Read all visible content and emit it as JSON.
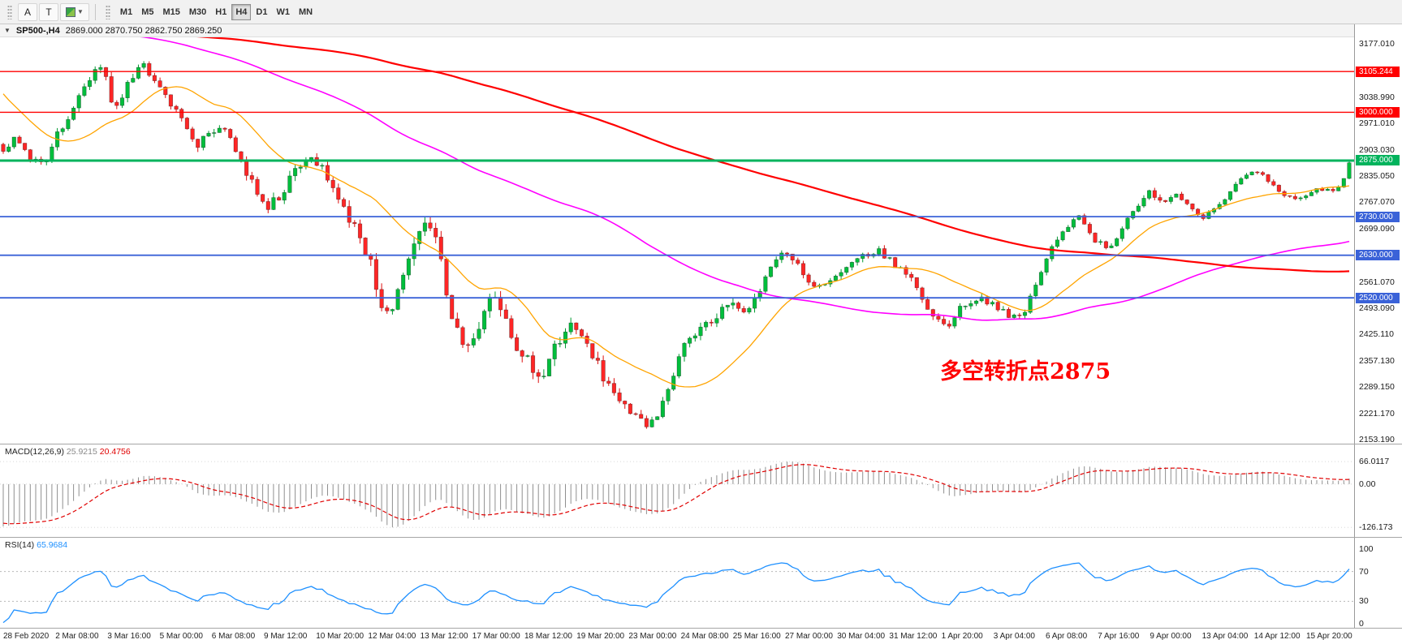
{
  "toolbar": {
    "tools": [
      {
        "name": "text-annotation-tool",
        "label": "A"
      },
      {
        "name": "text-label-tool",
        "label": "T"
      }
    ],
    "timeframes": [
      "M1",
      "M5",
      "M15",
      "M30",
      "H1",
      "H4",
      "D1",
      "W1",
      "MN"
    ],
    "active_timeframe": "H4"
  },
  "chart": {
    "title": "SP500-,H4",
    "ohlc": "2869.000 2870.750 2862.750 2869.250",
    "annotation": {
      "text": "多空转折点2875",
      "color": "#ff0000"
    },
    "levels": [
      {
        "label": "3105.244",
        "price": 3105.244,
        "color": "#ff0000",
        "width": 1.4
      },
      {
        "label": "3000.000",
        "price": 3000.0,
        "color": "#ff0000",
        "width": 1.4
      },
      {
        "label": "2875.000",
        "price": 2875.0,
        "color": "#00b35c",
        "width": 3
      },
      {
        "label": "2730.000",
        "price": 2730.0,
        "color": "#3a62d8",
        "width": 1.8
      },
      {
        "label": "2630.000",
        "price": 2630.0,
        "color": "#3a62d8",
        "width": 1.8
      },
      {
        "label": "2520.000",
        "price": 2520.0,
        "color": "#3a62d8",
        "width": 1.8
      }
    ],
    "axis_labels": [
      "3177.010",
      "3038.990",
      "2971.010",
      "2903.030",
      "2835.050",
      "2767.070",
      "2699.090",
      "2561.070",
      "2493.090",
      "2425.110",
      "2357.130",
      "2289.150",
      "2221.170",
      "2153.190"
    ],
    "axis_range": {
      "top": 3177.01,
      "bottom": 2153.19
    }
  },
  "indicators": {
    "macd": {
      "label": "MACD(12,26,9)",
      "value_main": "25.9215",
      "value_signal": "20.4756",
      "axis": [
        "66.0117",
        "0.00",
        "-126.173"
      ],
      "params": {
        "fast": 12,
        "slow": 26,
        "signal": 9
      },
      "histogram_color": "#8f8f8f",
      "signal_color": "#e00000"
    },
    "rsi": {
      "label": "RSI(14)",
      "value": "65.9684",
      "axis": [
        "100",
        "70",
        "30",
        "0"
      ],
      "levels": [
        70,
        30
      ],
      "period": 14,
      "line_color": "#1e90ff"
    }
  },
  "time_axis": [
    "28 Feb 2020",
    "2 Mar 08:00",
    "3 Mar 16:00",
    "5 Mar 00:00",
    "6 Mar 08:00",
    "9 Mar 12:00",
    "10 Mar 20:00",
    "12 Mar 04:00",
    "13 Mar 12:00",
    "17 Mar 00:00",
    "18 Mar 12:00",
    "19 Mar 20:00",
    "23 Mar 00:00",
    "24 Mar 08:00",
    "25 Mar 16:00",
    "27 Mar 00:00",
    "30 Mar 04:00",
    "31 Mar 12:00",
    "1 Apr 20:00",
    "3 Apr 04:00",
    "6 Apr 08:00",
    "7 Apr 16:00",
    "9 Apr 00:00",
    "13 Apr 04:00",
    "14 Apr 12:00",
    "15 Apr 20:00"
  ],
  "chart_data": {
    "type": "candlestick",
    "symbol": "SP500-",
    "timeframe": "H4",
    "visible_bars": 250,
    "last_close": 2869.25,
    "colors": {
      "up_fill": "#00be3c",
      "up_wick": "#009a30",
      "down_fill": "#ff2626",
      "down_wick": "#dd0e0e",
      "body_border": "rgba(0,0,0,0.45)"
    },
    "moving_averages": [
      {
        "period": 20,
        "color": "#ffa400",
        "width": 1.3
      },
      {
        "period": 100,
        "color": "#ff00ff",
        "width": 1.6
      },
      {
        "period": 200,
        "color": "#ff0000",
        "width": 2.2
      }
    ],
    "price_path": [
      [
        0.0,
        2905,
        18
      ],
      [
        0.01,
        2935,
        18
      ],
      [
        0.02,
        2880,
        18
      ],
      [
        0.03,
        2865,
        18
      ],
      [
        0.04,
        2940,
        20
      ],
      [
        0.055,
        3030,
        22
      ],
      [
        0.068,
        3110,
        24
      ],
      [
        0.074,
        3130,
        24
      ],
      [
        0.082,
        3000,
        26
      ],
      [
        0.092,
        3070,
        24
      ],
      [
        0.103,
        3125,
        22
      ],
      [
        0.112,
        3090,
        20
      ],
      [
        0.119,
        3045,
        20
      ],
      [
        0.132,
        2985,
        22
      ],
      [
        0.145,
        2915,
        24
      ],
      [
        0.155,
        2950,
        24
      ],
      [
        0.165,
        2965,
        22
      ],
      [
        0.175,
        2880,
        26
      ],
      [
        0.188,
        2800,
        30
      ],
      [
        0.197,
        2755,
        30
      ],
      [
        0.205,
        2785,
        28
      ],
      [
        0.218,
        2850,
        28
      ],
      [
        0.228,
        2880,
        26
      ],
      [
        0.238,
        2860,
        28
      ],
      [
        0.25,
        2760,
        32
      ],
      [
        0.262,
        2705,
        34
      ],
      [
        0.272,
        2620,
        38
      ],
      [
        0.28,
        2510,
        40
      ],
      [
        0.288,
        2485,
        40
      ],
      [
        0.298,
        2575,
        38
      ],
      [
        0.308,
        2680,
        36
      ],
      [
        0.315,
        2710,
        34
      ],
      [
        0.323,
        2660,
        36
      ],
      [
        0.332,
        2480,
        42
      ],
      [
        0.342,
        2400,
        40
      ],
      [
        0.352,
        2420,
        38
      ],
      [
        0.362,
        2530,
        36
      ],
      [
        0.37,
        2495,
        36
      ],
      [
        0.38,
        2390,
        38
      ],
      [
        0.391,
        2355,
        38
      ],
      [
        0.4,
        2300,
        38
      ],
      [
        0.41,
        2400,
        38
      ],
      [
        0.42,
        2445,
        36
      ],
      [
        0.43,
        2420,
        34
      ],
      [
        0.44,
        2355,
        34
      ],
      [
        0.45,
        2290,
        32
      ],
      [
        0.462,
        2245,
        30
      ],
      [
        0.472,
        2200,
        28
      ],
      [
        0.48,
        2180,
        28
      ],
      [
        0.488,
        2235,
        28
      ],
      [
        0.498,
        2330,
        30
      ],
      [
        0.509,
        2420,
        28
      ],
      [
        0.52,
        2450,
        26
      ],
      [
        0.53,
        2465,
        26
      ],
      [
        0.54,
        2515,
        26
      ],
      [
        0.548,
        2480,
        26
      ],
      [
        0.558,
        2515,
        24
      ],
      [
        0.57,
        2600,
        24
      ],
      [
        0.58,
        2635,
        24
      ],
      [
        0.59,
        2605,
        24
      ],
      [
        0.6,
        2545,
        24
      ],
      [
        0.612,
        2555,
        22
      ],
      [
        0.626,
        2590,
        22
      ],
      [
        0.638,
        2630,
        20
      ],
      [
        0.65,
        2640,
        20
      ],
      [
        0.665,
        2600,
        20
      ],
      [
        0.678,
        2555,
        20
      ],
      [
        0.69,
        2470,
        20
      ],
      [
        0.702,
        2450,
        20
      ],
      [
        0.714,
        2505,
        20
      ],
      [
        0.726,
        2520,
        18
      ],
      [
        0.738,
        2500,
        18
      ],
      [
        0.748,
        2465,
        18
      ],
      [
        0.758,
        2475,
        18
      ],
      [
        0.768,
        2565,
        18
      ],
      [
        0.78,
        2655,
        18
      ],
      [
        0.79,
        2700,
        18
      ],
      [
        0.8,
        2740,
        18
      ],
      [
        0.81,
        2670,
        18
      ],
      [
        0.822,
        2650,
        18
      ],
      [
        0.832,
        2705,
        16
      ],
      [
        0.842,
        2750,
        16
      ],
      [
        0.852,
        2795,
        16
      ],
      [
        0.862,
        2770,
        16
      ],
      [
        0.872,
        2790,
        14
      ],
      [
        0.882,
        2755,
        14
      ],
      [
        0.892,
        2730,
        14
      ],
      [
        0.902,
        2758,
        14
      ],
      [
        0.914,
        2805,
        14
      ],
      [
        0.926,
        2845,
        14
      ],
      [
        0.938,
        2830,
        14
      ],
      [
        0.95,
        2782,
        14
      ],
      [
        0.962,
        2772,
        12
      ],
      [
        0.974,
        2800,
        12
      ],
      [
        0.986,
        2798,
        10
      ],
      [
        0.994,
        2808,
        10
      ],
      [
        1.0,
        2869,
        8
      ]
    ],
    "prehistory_path": [
      [
        -1.0,
        3060
      ],
      [
        -0.8,
        3110
      ],
      [
        -0.6,
        3160
      ],
      [
        -0.4,
        3250
      ],
      [
        -0.25,
        3320
      ],
      [
        -0.16,
        3380
      ],
      [
        -0.12,
        3385
      ],
      [
        -0.09,
        3300
      ],
      [
        -0.06,
        3150
      ],
      [
        -0.04,
        3040
      ],
      [
        -0.02,
        2955
      ],
      [
        0,
        2905
      ]
    ]
  }
}
